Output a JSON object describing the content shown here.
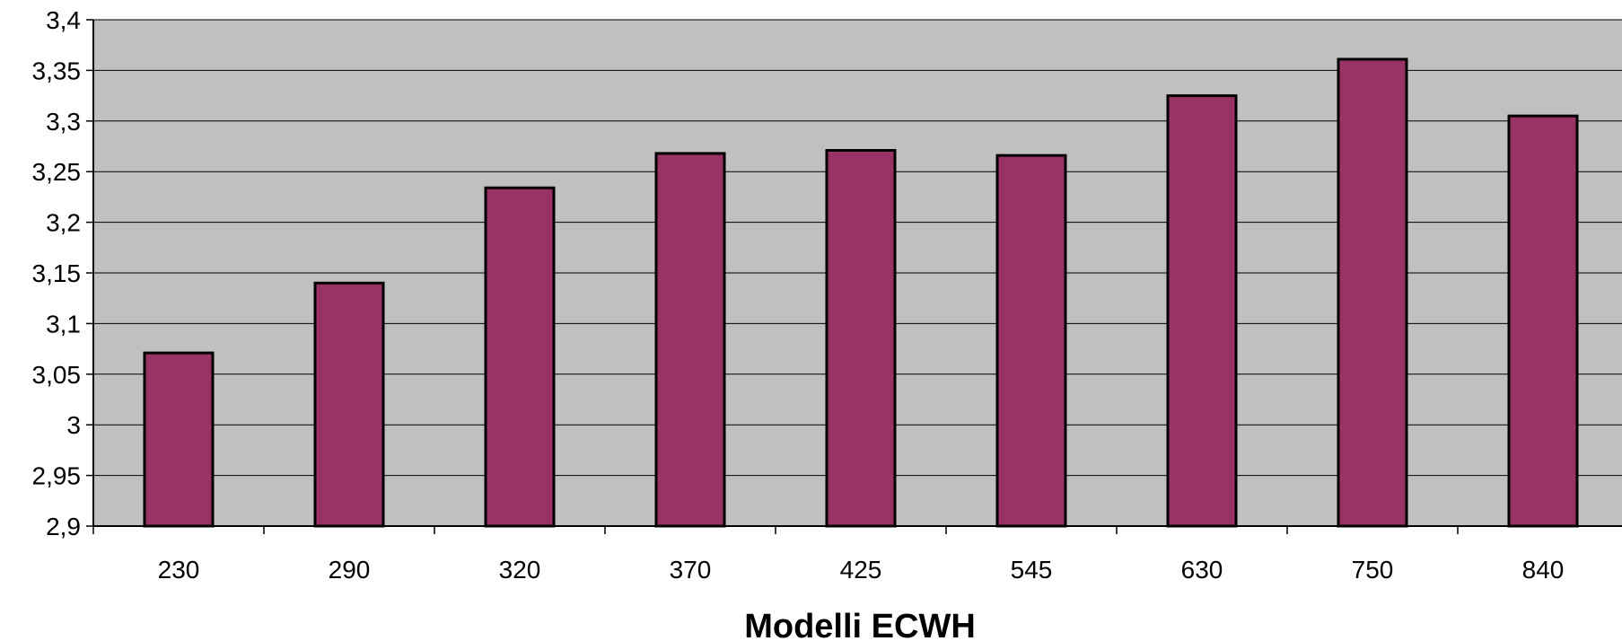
{
  "chart_data": {
    "type": "bar",
    "title": "",
    "xlabel": "Modelli ECWH",
    "ylabel": "",
    "categories": [
      "230",
      "290",
      "320",
      "370",
      "425",
      "545",
      "630",
      "750",
      "840"
    ],
    "values": [
      3.071,
      3.14,
      3.234,
      3.268,
      3.271,
      3.266,
      3.325,
      3.361,
      3.305
    ],
    "ylim": [
      2.9,
      3.4
    ],
    "yticks": [
      "2,9",
      "2,95",
      "3",
      "3,05",
      "3,1",
      "3,15",
      "3,2",
      "3,25",
      "3,3",
      "3,35",
      "3,4"
    ],
    "grid": true,
    "legend": "none",
    "colors": {
      "bar": "#993366",
      "plot_background": "#c0c0c0",
      "grid": "#000000"
    }
  }
}
